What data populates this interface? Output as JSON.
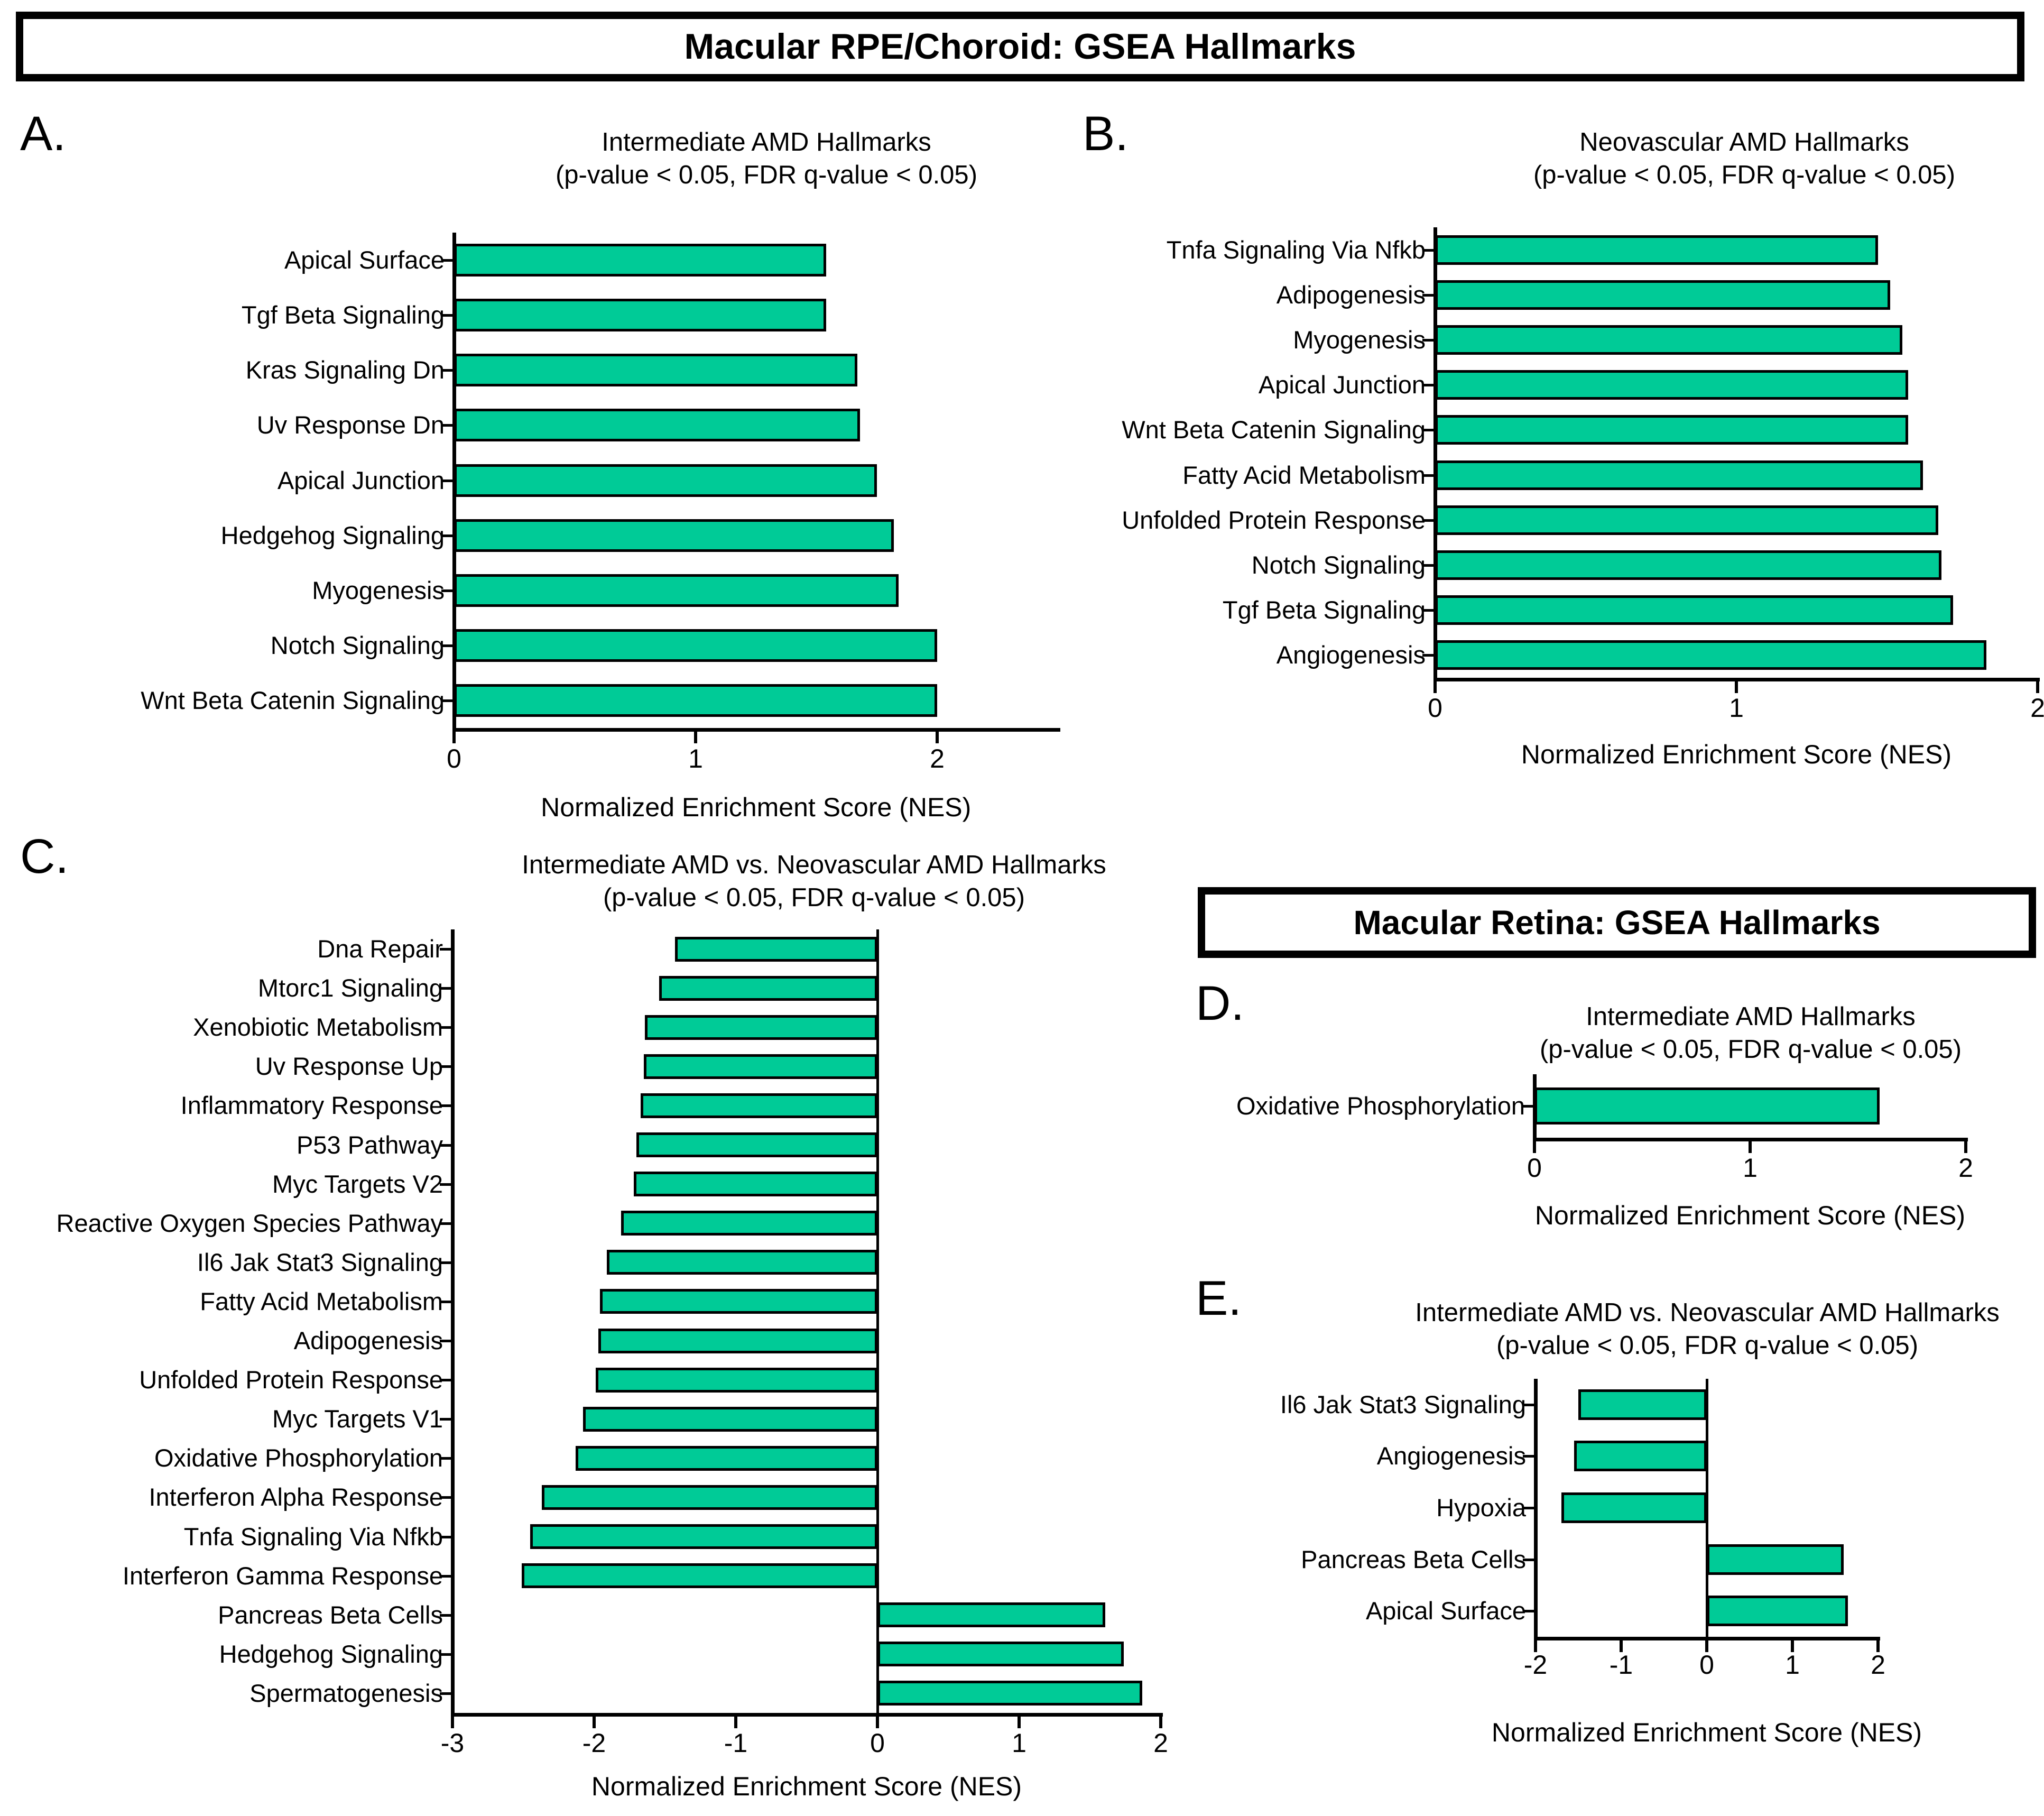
{
  "banners": [
    {
      "text": "Macular RPE/Choroid: GSEA Hallmarks"
    },
    {
      "text": "Macular Retina: GSEA Hallmarks"
    }
  ],
  "colors": {
    "bar_fill": "#00CB97",
    "bar_border": "#000000",
    "axis": "#000000",
    "background": "#FFFFFF",
    "text": "#000000"
  },
  "chart_data": [
    {
      "type": "bar",
      "orientation": "horizontal",
      "letter": "A.",
      "title": "Intermediate AMD Hallmarks",
      "subtitle": "(p-value < 0.05, FDR q-value < 0.05)",
      "xlabel": "Normalized Enrichment Score (NES)",
      "xlim": [
        0,
        2.5
      ],
      "xticks": [
        "0",
        "1",
        "2"
      ],
      "grid": false,
      "legend": "none",
      "categories": [
        "Apical Surface",
        "Tgf Beta Signaling",
        "Kras Signaling Dn",
        "Uv Response Dn",
        "Apical Junction",
        "Hedgehog Signaling",
        "Myogenesis",
        "Notch Signaling",
        "Wnt Beta Catenin Signaling"
      ],
      "values": [
        1.54,
        1.54,
        1.67,
        1.68,
        1.75,
        1.82,
        1.84,
        2.0,
        2.0
      ]
    },
    {
      "type": "bar",
      "orientation": "horizontal",
      "letter": "B.",
      "title": "Neovascular AMD Hallmarks",
      "subtitle": "(p-value < 0.05, FDR q-value < 0.05)",
      "xlabel": "Normalized Enrichment Score (NES)",
      "xlim": [
        0,
        2
      ],
      "xticks": [
        "0",
        "1",
        "2"
      ],
      "grid": false,
      "legend": "none",
      "categories": [
        "Tnfa Signaling Via Nfkb",
        "Adipogenesis",
        "Myogenesis",
        "Apical Junction",
        "Wnt Beta Catenin Signaling",
        "Fatty Acid Metabolism",
        "Unfolded Protein Response",
        "Notch Signaling",
        "Tgf Beta Signaling",
        "Angiogenesis"
      ],
      "values": [
        1.47,
        1.51,
        1.55,
        1.57,
        1.57,
        1.62,
        1.67,
        1.68,
        1.72,
        1.83
      ]
    },
    {
      "type": "bar",
      "orientation": "horizontal",
      "letter": "C.",
      "title": "Intermediate AMD vs. Neovascular AMD Hallmarks",
      "subtitle": "(p-value < 0.05, FDR q-value < 0.05)",
      "xlabel": "Normalized Enrichment Score (NES)",
      "xlim": [
        -3,
        2
      ],
      "xticks": [
        "-3",
        "-2",
        "-1",
        "0",
        "1",
        "2"
      ],
      "grid": false,
      "legend": "none",
      "categories": [
        "Dna Repair",
        "Mtorc1 Signaling",
        "Xenobiotic Metabolism",
        "Uv Response Up",
        "Inflammatory Response",
        "P53 Pathway",
        "Myc Targets V2",
        "Reactive Oxygen Species Pathway",
        "Il6 Jak Stat3 Signaling",
        "Fatty Acid Metabolism",
        "Adipogenesis",
        "Unfolded Protein Response",
        "Myc Targets V1",
        "Oxidative Phosphorylation",
        "Interferon Alpha Response",
        "Tnfa Signaling Via Nfkb",
        "Interferon Gamma Response",
        "Pancreas Beta Cells",
        "Hedgehog Signaling",
        "Spermatogenesis"
      ],
      "values": [
        -1.43,
        -1.54,
        -1.64,
        -1.65,
        -1.67,
        -1.7,
        -1.72,
        -1.81,
        -1.91,
        -1.96,
        -1.97,
        -1.99,
        -2.08,
        -2.13,
        -2.37,
        -2.45,
        -2.51,
        1.61,
        1.74,
        1.87
      ]
    },
    {
      "type": "bar",
      "orientation": "horizontal",
      "letter": "D.",
      "title": "Intermediate AMD Hallmarks",
      "subtitle": "(p-value < 0.05, FDR q-value < 0.05)",
      "xlabel": "Normalized Enrichment Score (NES)",
      "xlim": [
        0,
        2
      ],
      "xticks": [
        "0",
        "1",
        "2"
      ],
      "grid": false,
      "legend": "none",
      "categories": [
        "Oxidative Phosphorylation"
      ],
      "values": [
        1.6
      ]
    },
    {
      "type": "bar",
      "orientation": "horizontal",
      "letter": "E.",
      "title": "Intermediate AMD vs. Neovascular AMD Hallmarks",
      "subtitle": "(p-value < 0.05, FDR q-value < 0.05)",
      "xlabel": "Normalized Enrichment Score (NES)",
      "xlim": [
        -2,
        2
      ],
      "xticks": [
        "-2",
        "-1",
        "0",
        "1",
        "2"
      ],
      "grid": false,
      "legend": "none",
      "categories": [
        "Il6 Jak Stat3 Signaling",
        "Angiogenesis",
        "Hypoxia",
        "Pancreas Beta Cells",
        "Apical Surface"
      ],
      "values": [
        -1.5,
        -1.55,
        -1.7,
        1.6,
        1.65
      ]
    }
  ]
}
